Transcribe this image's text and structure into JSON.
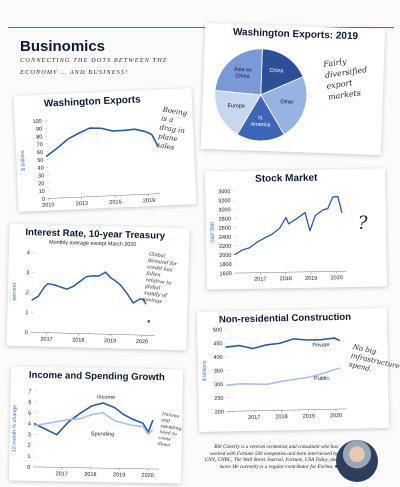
{
  "brand": {
    "title": "Businomics",
    "tagline": "CONNECTING THE DOTS BETWEEN THE ECONOMY … AND BUSINESS!"
  },
  "bio": "Bill Conerly is a veteran economist and consultant who has worked with Fortune 500 companies and been interviewed by CNN, CNBC, The Wall Street Journal, Fortune, USA Today, and more. He currently is a regular contributor for Forbes. ■",
  "colors": {
    "line": "#2c5aa0",
    "lightline": "#a9c1e6",
    "title": "#0b1a33"
  },
  "chart_data": [
    {
      "id": "wa_exports",
      "type": "line",
      "title": "Washington Exports",
      "ylabel": "$ billions",
      "ylim": [
        0,
        100
      ],
      "yticks": [
        0,
        10,
        20,
        30,
        40,
        50,
        60,
        70,
        80,
        90,
        100
      ],
      "xticks": [
        2010,
        2013,
        2016,
        2019
      ],
      "xlim": [
        2010,
        2020
      ],
      "series": [
        {
          "x": [
            2010,
            2011,
            2012,
            2013,
            2014,
            2015,
            2016,
            2017,
            2018,
            2019,
            2019.5,
            2020
          ],
          "y": [
            54,
            64,
            75,
            82,
            88,
            87,
            83,
            83,
            84,
            80,
            76,
            61
          ]
        }
      ],
      "annotation": "Boeing is a drag in plane sales"
    },
    {
      "id": "wa_exports_pie",
      "type": "pie",
      "title": "Washington Exports: 2019",
      "slices": [
        {
          "label": "China",
          "value": 18,
          "color": "#2c4f9a"
        },
        {
          "label": "Other",
          "value": 23,
          "color": "#98b2e3"
        },
        {
          "label": "N. America",
          "value": 17,
          "color": "#3d66b8"
        },
        {
          "label": "Europe",
          "value": 18,
          "color": "#c8d6ef"
        },
        {
          "label": "Asia ex China",
          "value": 24,
          "color": "#7a99d6"
        }
      ],
      "annotation": "Fairly diversified export markets"
    },
    {
      "id": "stock_market",
      "type": "line",
      "title": "Stock Market",
      "ylabel": "S&P 500",
      "ylim": [
        1600,
        3400
      ],
      "yticks": [
        1600,
        1800,
        2000,
        2200,
        2400,
        2600,
        2800,
        3000,
        3200,
        3400
      ],
      "xticks": [
        2017,
        2018,
        2019,
        2020
      ],
      "xlim": [
        2016,
        2020.4
      ],
      "series": [
        {
          "x": [
            2016,
            2016.3,
            2016.6,
            2016.9,
            2017.2,
            2017.5,
            2017.8,
            2018.05,
            2018.15,
            2018.5,
            2018.8,
            2018.98,
            2019.2,
            2019.5,
            2019.7,
            2019.9,
            2020.1,
            2020.25
          ],
          "y": [
            2000,
            2100,
            2150,
            2270,
            2360,
            2440,
            2570,
            2800,
            2660,
            2780,
            2900,
            2500,
            2830,
            2950,
            2980,
            3230,
            3240,
            2880
          ]
        }
      ],
      "annotation": "?"
    },
    {
      "id": "interest_rate",
      "type": "line",
      "title": "Interest Rate, 10-year Treasury",
      "subtitle": "Monthly average except March 2020",
      "ylabel": "percent",
      "ylim": [
        0,
        4
      ],
      "yticks": [
        0,
        1,
        2,
        3,
        4
      ],
      "xticks": [
        2017,
        2018,
        2019,
        2020
      ],
      "xlim": [
        2016.5,
        2020.4
      ],
      "series": [
        {
          "x": [
            2016.5,
            2016.7,
            2016.9,
            2017.0,
            2017.2,
            2017.4,
            2017.6,
            2017.8,
            2018.0,
            2018.2,
            2018.4,
            2018.6,
            2018.8,
            2018.95,
            2019.1,
            2019.3,
            2019.5,
            2019.7,
            2019.9,
            2020.0,
            2020.1
          ],
          "y": [
            1.6,
            1.8,
            2.3,
            2.45,
            2.4,
            2.3,
            2.2,
            2.35,
            2.6,
            2.85,
            2.9,
            2.9,
            3.1,
            2.85,
            2.7,
            2.45,
            2.05,
            1.6,
            1.8,
            1.8,
            1.55
          ]
        }
      ],
      "point": {
        "x": 2020.2,
        "y": 0.7
      },
      "annotation": "Global demand for credit has fallen relative to global supply of savings"
    },
    {
      "id": "construction",
      "type": "line",
      "title": "Non-residential Construction",
      "ylabel": "$ billions",
      "ylim": [
        200,
        500
      ],
      "yticks": [
        200,
        250,
        300,
        350,
        400,
        450,
        500
      ],
      "xticks": [
        2017,
        2018,
        2019,
        2020
      ],
      "xlim": [
        2016,
        2020.4
      ],
      "series": [
        {
          "name": "Private",
          "x": [
            2016,
            2016.5,
            2017,
            2017.5,
            2018,
            2018.5,
            2019,
            2019.5,
            2020,
            2020.2
          ],
          "y": [
            435,
            440,
            428,
            440,
            445,
            460,
            455,
            455,
            460,
            450
          ]
        },
        {
          "name": "Public",
          "x": [
            2016,
            2016.5,
            2017,
            2017.5,
            2018,
            2018.5,
            2019,
            2019.5,
            2020,
            2020.2
          ],
          "y": [
            295,
            300,
            298,
            296,
            305,
            312,
            318,
            330,
            345,
            350
          ]
        }
      ],
      "annotation": "No big infrastructure spend."
    },
    {
      "id": "income_spending",
      "type": "line",
      "title": "Income and Spending Growth",
      "ylabel": "12-month % change",
      "ylim": [
        0,
        7
      ],
      "yticks": [
        0,
        1,
        2,
        3,
        4,
        5,
        6,
        7
      ],
      "xticks": [
        2017,
        2018,
        2019,
        2020
      ],
      "xlim": [
        2016,
        2020.4
      ],
      "series": [
        {
          "name": "Income",
          "x": [
            2016,
            2016.4,
            2016.8,
            2017.2,
            2017.6,
            2018.0,
            2018.4,
            2018.8,
            2019.1,
            2019.4,
            2019.8,
            2020.0,
            2020.15
          ],
          "y": [
            4.0,
            3.5,
            3.0,
            4.2,
            5.0,
            5.7,
            6.0,
            5.6,
            5.0,
            4.6,
            4.2,
            3.4,
            4.5
          ]
        },
        {
          "name": "Spending",
          "x": [
            2016,
            2016.4,
            2016.8,
            2017.2,
            2017.6,
            2018.0,
            2018.4,
            2018.8,
            2019.1,
            2019.4,
            2019.8,
            2020.0,
            2020.15
          ],
          "y": [
            3.8,
            4.0,
            4.2,
            4.4,
            4.5,
            4.9,
            5.1,
            4.4,
            4.2,
            4.0,
            3.9,
            3.2,
            3.6
          ]
        }
      ],
      "annotation": "Income and spending need to come down"
    }
  ]
}
